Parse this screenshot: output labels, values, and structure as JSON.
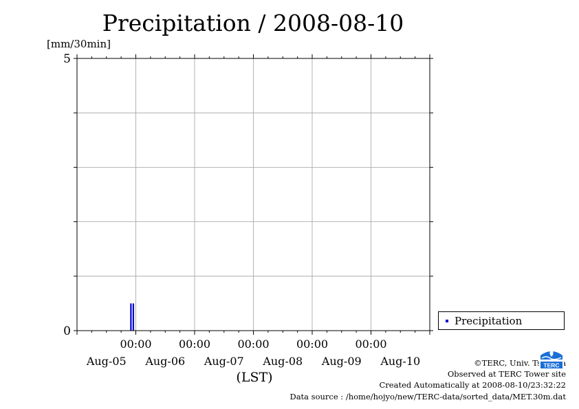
{
  "title": "Precipitation / 2008-08-10",
  "unit_label": "[mm/30min]",
  "legend": {
    "label": "Precipitation"
  },
  "footer": {
    "copyright": "©TERC, Univ. Tsukuba",
    "site": "Observed at TERC Tower site",
    "created": "Created Automatically at 2008-08-10/23:32:22",
    "source": "Data source : /home/hojyo/new/TERC-data/sorted_data/MET.30m.dat"
  },
  "logo": {
    "text": "TERC"
  },
  "colors": {
    "series": "#0000cc",
    "grid": "#a0a0a0",
    "axis": "#000000"
  },
  "chart_data": {
    "type": "bar",
    "title": "Precipitation / 2008-08-10",
    "ylabel": "[mm/30min]",
    "xlabel": "(LST)",
    "ylim": [
      0,
      5
    ],
    "xlim": [
      "2008-08-05 00:00",
      "2008-08-11 00:00"
    ],
    "ytick_labels": [
      "5",
      "0"
    ],
    "xtick_time_labels": [
      "00:00",
      "00:00",
      "00:00",
      "00:00",
      "00:00"
    ],
    "xtick_times": [
      "2008-08-06 00:00",
      "2008-08-07 00:00",
      "2008-08-08 00:00",
      "2008-08-09 00:00",
      "2008-08-10 00:00"
    ],
    "xdate_labels": [
      "Aug-05",
      "Aug-06",
      "Aug-07",
      "Aug-08",
      "Aug-09",
      "Aug-10"
    ],
    "xdate_centers": [
      "2008-08-05 12:00",
      "2008-08-06 12:00",
      "2008-08-07 12:00",
      "2008-08-08 12:00",
      "2008-08-09 12:00",
      "2008-08-10 12:00"
    ],
    "grid": true,
    "legend_position": "right",
    "series": [
      {
        "name": "Precipitation",
        "x": [
          "2008-08-05 22:00",
          "2008-08-05 23:00"
        ],
        "values": [
          0.5,
          0.5
        ]
      }
    ]
  }
}
